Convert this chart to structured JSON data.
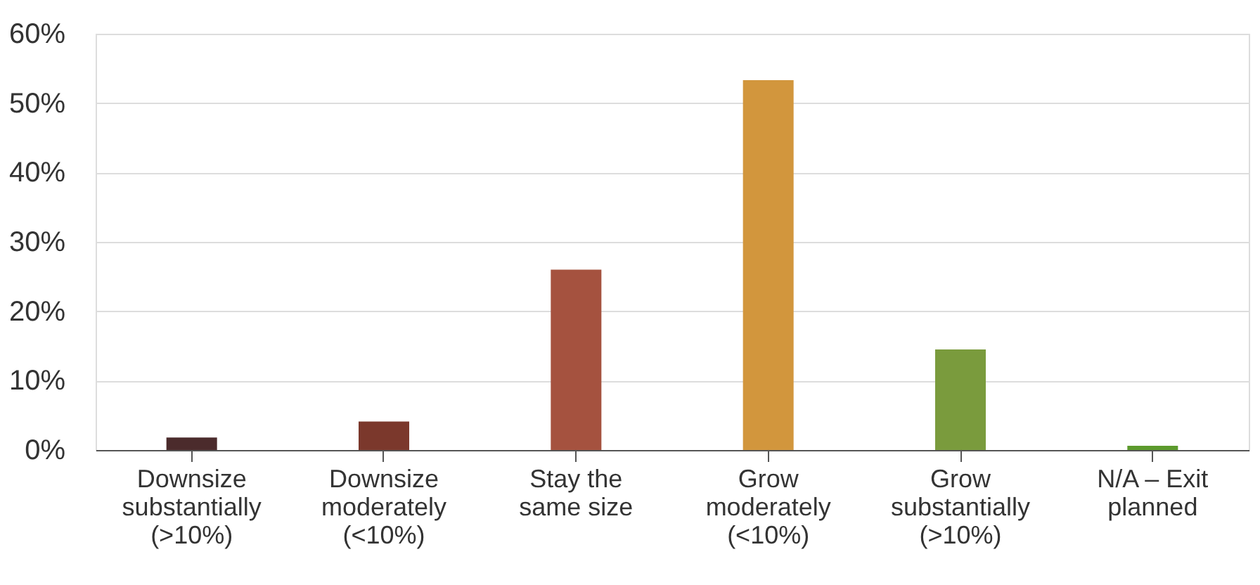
{
  "chart_data": {
    "type": "bar",
    "categories": [
      "Downsize substantially (>10%)",
      "Downsize moderately (<10%)",
      "Stay the same size",
      "Grow moderately (<10%)",
      "Grow substantially (>10%)",
      "N/A – Exit planned"
    ],
    "values": [
      1.8,
      4.1,
      26,
      53.3,
      14.5,
      0.6
    ],
    "colors": [
      "#4b2b2c",
      "#7b382c",
      "#a5523f",
      "#d2963d",
      "#7a9b3d",
      "#5c9a2c"
    ],
    "ylim": [
      0,
      60
    ],
    "yticks": [
      {
        "value": 0,
        "label": "0%"
      },
      {
        "value": 10,
        "label": "10%"
      },
      {
        "value": 20,
        "label": "20%"
      },
      {
        "value": 30,
        "label": "30%"
      },
      {
        "value": 40,
        "label": "40%"
      },
      {
        "value": 50,
        "label": "50%"
      },
      {
        "value": 60,
        "label": "60%"
      }
    ],
    "grid": "y"
  }
}
